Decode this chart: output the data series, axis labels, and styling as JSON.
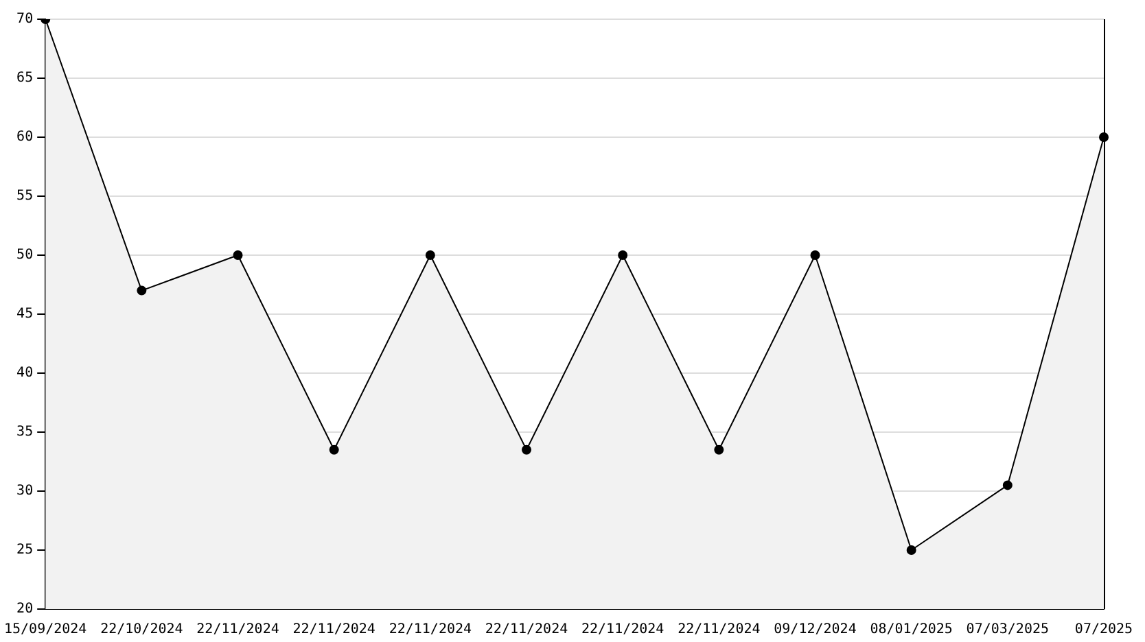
{
  "chart_data": {
    "type": "area",
    "categories": [
      "15/09/2024",
      "22/10/2024",
      "22/11/2024",
      "22/11/2024",
      "22/11/2024",
      "22/11/2024",
      "22/11/2024",
      "22/11/2024",
      "09/12/2024",
      "08/01/2025",
      "07/03/2025",
      "07/2025"
    ],
    "series": [
      {
        "color": "#000000",
        "values": [
          70,
          47,
          50,
          33.5,
          50,
          33.5,
          50,
          33.5,
          50,
          25,
          30.5,
          60
        ]
      }
    ],
    "ylim": [
      20,
      70
    ],
    "yticks": [
      20,
      25,
      30,
      35,
      40,
      45,
      50,
      55,
      60,
      65,
      70
    ],
    "grid": "y",
    "legend": false,
    "marker": "circle",
    "line_style": "solid"
  }
}
